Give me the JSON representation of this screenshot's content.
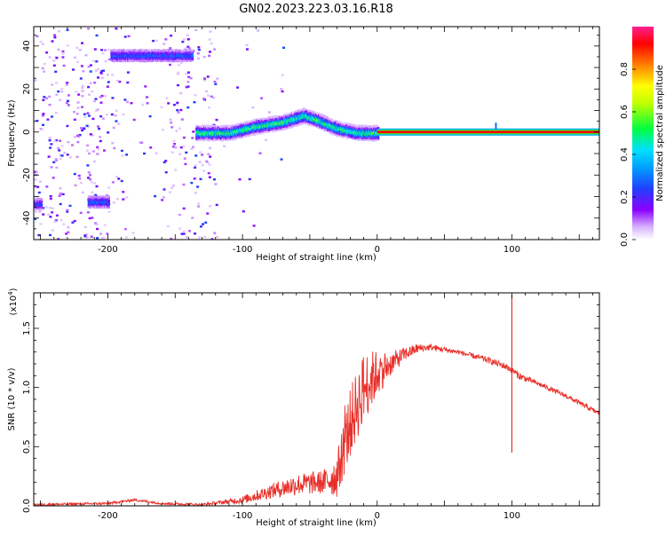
{
  "title": "GN02.2023.223.03.16.R18",
  "colors": {
    "trace": "#e8302a",
    "spectrum_line": "#e8204a",
    "background": "#ffffff",
    "axis": "#000000"
  },
  "chart_data": [
    {
      "type": "heatmap",
      "name": "spectrogram",
      "xlabel": "Height of straight line (km)",
      "ylabel": "Frequency (Hz)",
      "xlim": [
        -255,
        165
      ],
      "ylim": [
        -50,
        49
      ],
      "x_ticks": [
        "-200",
        "-100",
        "0",
        "100"
      ],
      "y_ticks": [
        "40",
        "20",
        "0",
        "-20",
        "-40"
      ],
      "colorbar": {
        "label": "Normalized spectral amplitude",
        "range": [
          0,
          1
        ],
        "ticks": [
          "0.0",
          "0.2",
          "0.4",
          "0.6",
          "0.8"
        ],
        "colormap": [
          "#ffffff",
          "#8a00ff",
          "#2040ff",
          "#00e0ff",
          "#00ff40",
          "#ffff00",
          "#ff8000",
          "#ff0000",
          "#ff2090"
        ]
      },
      "tracks": [
        {
          "x": [
            -255,
            -250
          ],
          "freq_hz": -33,
          "amplitude": 0.25
        },
        {
          "x": [
            -215,
            -200
          ],
          "freq_hz": -32,
          "amplitude": 0.3
        },
        {
          "x": [
            -198,
            -138
          ],
          "freq_hz": 36,
          "amplitude": 0.3
        },
        {
          "x": [
            -135,
            0
          ],
          "freq_hz_profile": [
            [
              -135,
              0
            ],
            [
              -110,
              0
            ],
            [
              -90,
              3
            ],
            [
              -70,
              5
            ],
            [
              -55,
              8
            ],
            [
              -45,
              6
            ],
            [
              -30,
              2
            ],
            [
              -15,
              0
            ],
            [
              0,
              0
            ]
          ],
          "amplitude": 0.55
        },
        {
          "x": [
            0,
            165
          ],
          "freq_hz": 0,
          "amplitude": 0.92
        }
      ]
    },
    {
      "type": "line",
      "name": "snr",
      "xlabel": "Height of straight line (km)",
      "ylabel": "SNR (10 * v/v)",
      "multiplier_label": "(x10",
      "multiplier_exp": "4",
      "multiplier_close": ")",
      "xlim": [
        -255,
        165
      ],
      "ylim": [
        0,
        1.8
      ],
      "x_ticks": [
        "-200",
        "-100",
        "0",
        "100"
      ],
      "y_ticks": [
        "0.0",
        "0.5",
        "1.0",
        "1.5"
      ],
      "envelope": {
        "x": [
          -255,
          -200,
          -180,
          -160,
          -130,
          -100,
          -80,
          -60,
          -40,
          -30,
          -20,
          -10,
          0,
          10,
          20,
          30,
          40,
          60,
          80,
          95,
          100,
          105,
          120,
          140,
          165
        ],
        "y": [
          0.01,
          0.02,
          0.05,
          0.02,
          0.01,
          0.05,
          0.12,
          0.18,
          0.2,
          0.25,
          0.7,
          1.0,
          1.12,
          1.2,
          1.28,
          1.33,
          1.34,
          1.3,
          1.24,
          1.18,
          1.15,
          1.1,
          1.03,
          0.93,
          0.78
        ]
      },
      "noise": {
        "x": [
          -255,
          -130,
          -110,
          -80,
          -60,
          -40,
          -30,
          -20,
          -10,
          0,
          10,
          20,
          35,
          60,
          95,
          105,
          120,
          165
        ],
        "amp": [
          0.01,
          0.01,
          0.02,
          0.06,
          0.09,
          0.1,
          0.18,
          0.3,
          0.3,
          0.2,
          0.1,
          0.06,
          0.03,
          0.02,
          0.03,
          0.03,
          0.02,
          0.02
        ]
      },
      "spike": {
        "x": 100,
        "y_max": 1.78,
        "y_min": 0.45
      }
    }
  ]
}
